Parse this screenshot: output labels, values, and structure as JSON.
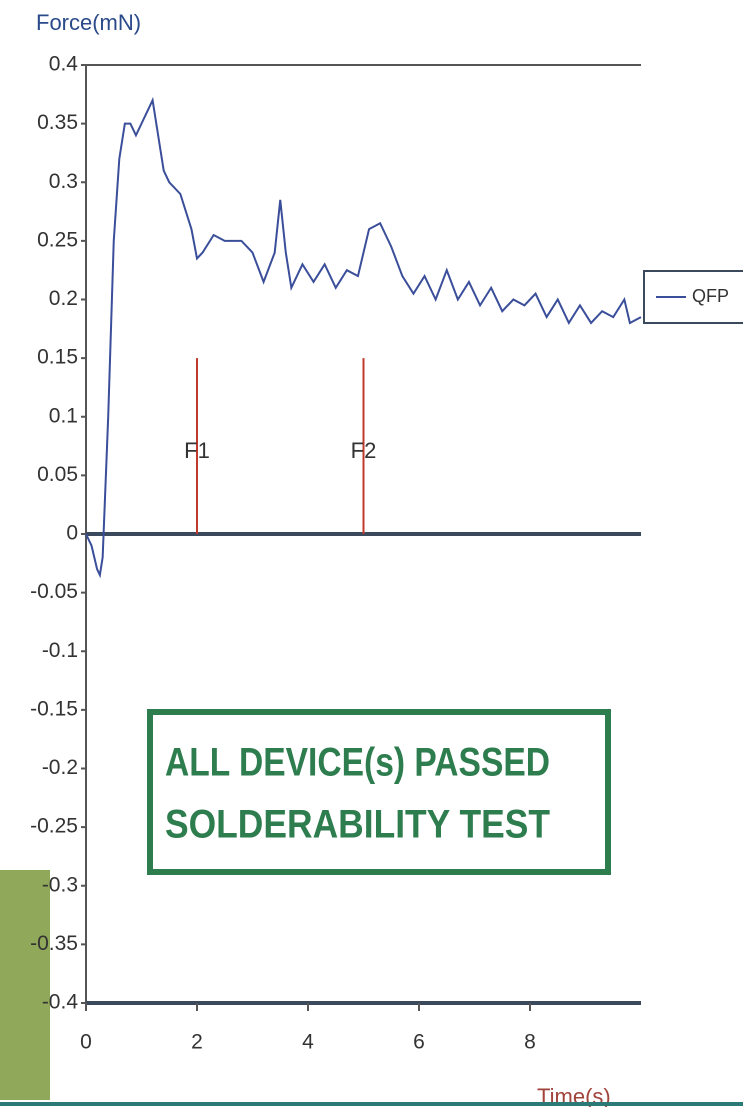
{
  "chart_data": {
    "type": "line",
    "title": "Force(mN)",
    "x_label": "Time(s)",
    "x": [
      0,
      0.1,
      0.2,
      0.25,
      0.3,
      0.4,
      0.5,
      0.6,
      0.7,
      0.8,
      0.9,
      1.0,
      1.1,
      1.2,
      1.3,
      1.4,
      1.5,
      1.7,
      1.9,
      2.0,
      2.1,
      2.3,
      2.5,
      2.8,
      3.0,
      3.2,
      3.4,
      3.5,
      3.6,
      3.7,
      3.9,
      4.1,
      4.3,
      4.5,
      4.7,
      4.9,
      5.1,
      5.3,
      5.5,
      5.7,
      5.9,
      6.1,
      6.3,
      6.5,
      6.7,
      6.9,
      7.1,
      7.3,
      7.5,
      7.7,
      7.9,
      8.1,
      8.3,
      8.5,
      8.7,
      8.9,
      9.1,
      9.3,
      9.5,
      9.7,
      9.8,
      10.0
    ],
    "series": [
      {
        "name": "QFP",
        "color": "#3a4e9a",
        "values": [
          0,
          -0.01,
          -0.03,
          -0.035,
          -0.02,
          0.1,
          0.25,
          0.32,
          0.35,
          0.35,
          0.34,
          0.35,
          0.36,
          0.37,
          0.34,
          0.31,
          0.3,
          0.29,
          0.26,
          0.235,
          0.24,
          0.255,
          0.25,
          0.25,
          0.24,
          0.215,
          0.24,
          0.285,
          0.24,
          0.21,
          0.23,
          0.215,
          0.23,
          0.21,
          0.225,
          0.22,
          0.26,
          0.265,
          0.245,
          0.22,
          0.205,
          0.22,
          0.2,
          0.225,
          0.2,
          0.215,
          0.195,
          0.21,
          0.19,
          0.2,
          0.195,
          0.205,
          0.185,
          0.2,
          0.18,
          0.195,
          0.18,
          0.19,
          0.185,
          0.2,
          0.18,
          0.185
        ]
      }
    ],
    "xlim": [
      0,
      10
    ],
    "xticks": [
      0,
      2,
      4,
      6,
      8
    ],
    "ylim": [
      -0.4,
      0.4
    ],
    "yticks": [
      0.4,
      0.35,
      0.3,
      0.25,
      0.2,
      0.15,
      0.1,
      0.05,
      0,
      -0.05,
      -0.1,
      -0.15,
      -0.2,
      -0.25,
      -0.3,
      -0.35,
      -0.4
    ],
    "markers": [
      {
        "label": "F1",
        "x": 2,
        "top": 0.15,
        "color": "#c0392b"
      },
      {
        "label": "F2",
        "x": 5,
        "top": 0.15,
        "color": "#c0392b"
      }
    ],
    "box_text": [
      "ALL DEVICE(s) PASSED",
      "SOLDERABILITY TEST"
    ],
    "box_color": "#2e7d4f",
    "legend": "right"
  }
}
